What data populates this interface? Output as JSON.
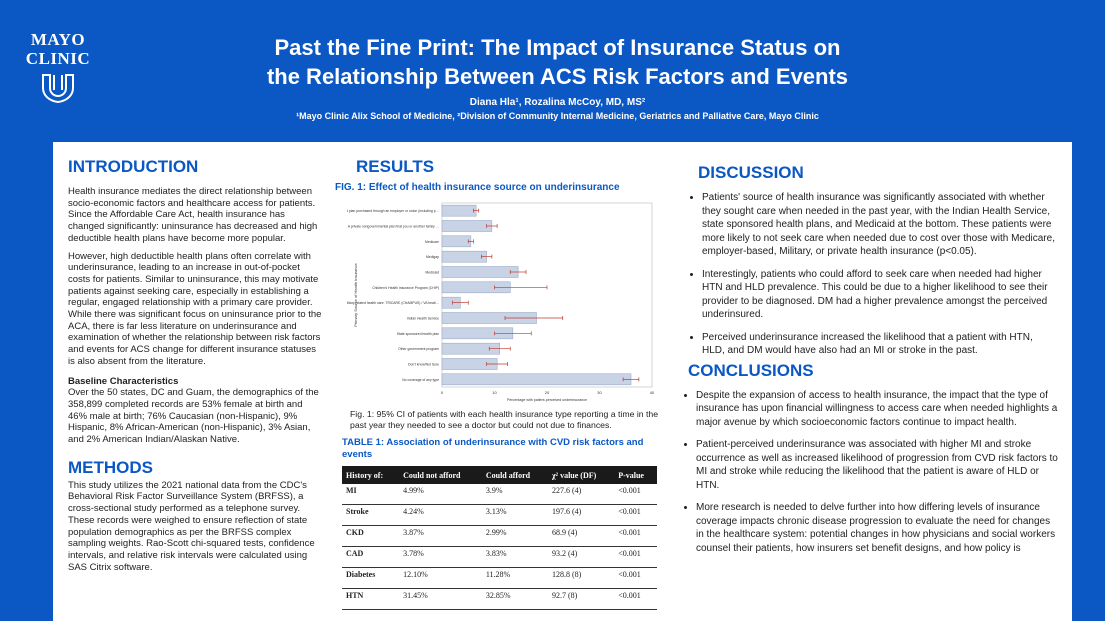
{
  "header": {
    "logo_line1": "MAYO",
    "logo_line2": "CLINIC",
    "title_line1": "Past the Fine Print: The Impact of Insurance Status on",
    "title_line2": "the Relationship Between ACS Risk Factors and Events",
    "authors": "Diana Hla¹, Rozalina McCoy, MD, MS²",
    "affiliations": "¹Mayo Clinic Alix School of Medicine, ²Division of Community Internal Medicine, Geriatrics and Palliative Care, Mayo Clinic"
  },
  "intro": {
    "heading": "INTRODUCTION",
    "p1": "Health insurance mediates the direct relationship between socio-economic factors and healthcare access for patients. Since the Affordable Care Act, health insurance has changed significantly: uninsurance has decreased and high deductible health plans have become more popular.",
    "p2": "However, high deductible health plans often correlate with underinsurance, leading to an increase in out-of-pocket costs for patients. Similar to uninsurance, this may motivate patients against seeking care, especially in establishing a regular, engaged relationship with a primary care provider. While there was significant focus on uninsurance prior to the ACA, there is far less literature on underinsurance and examination of whether the relationship between risk factors and events for ACS change for different insurance statuses is also absent from the literature.",
    "baseline_heading": "Baseline Characteristics",
    "baseline": "Over the 50 states, DC and Guam, the demographics of the 358,899 completed records are 53% female at birth and 46% male at birth; 76% Caucasian (non-Hispanic), 9% Hispanic, 8% African-American (non-Hispanic), 3% Asian, and 2% American Indian/Alaskan Native."
  },
  "methods": {
    "heading": "METHODS",
    "p1": "This study utilizes the 2021 national data from the CDC's Behavioral Risk Factor Surveillance System (BRFSS), a cross-sectional study performed as a telephone survey. These records were weighed to ensure reflection of state population demographics as per the BRFSS complex sampling weights. Rao-Scott chi-squared tests, confidence intervals, and relative risk intervals were calculated using SAS Citrix software."
  },
  "results": {
    "heading": "RESULTS",
    "fig_title": "FIG. 1: Effect of health insurance source on underinsurance",
    "fig_caption": "Fig. 1: 95% CI of patients with each health insurance type reporting a time in the past year they needed to see a doctor but could not due to finances.",
    "table_title": "TABLE 1: Association of underinsurance with CVD risk factors and events",
    "table_headers": [
      "History of:",
      "Could not afford",
      "Could afford",
      "χ² value (DF)",
      "P-value"
    ],
    "table_rows": [
      [
        "MI",
        "4.99%",
        "3.9%",
        "227.6 (4)",
        "<0.001"
      ],
      [
        "Stroke",
        "4.24%",
        "3.13%",
        "197.6 (4)",
        "<0.001"
      ],
      [
        "CKD",
        "3.87%",
        "2.99%",
        "68.9 (4)",
        "<0.001"
      ],
      [
        "CAD",
        "3.78%",
        "3.83%",
        "93.2 (4)",
        "<0.001"
      ],
      [
        "Diabetes",
        "12.10%",
        "11.28%",
        "128.8 (8)",
        "<0.001"
      ],
      [
        "HTN",
        "31.45%",
        "32.85%",
        "92.7 (8)",
        "<0.001"
      ]
    ]
  },
  "chart_data": {
    "type": "bar",
    "orientation": "horizontal",
    "title": "",
    "xlabel": "Percentage with patient-perceived underinsurance",
    "ylabel": "Primary Source of Health Insurance",
    "xlim": [
      0,
      40
    ],
    "xticks": [
      0,
      10,
      20,
      30,
      40
    ],
    "categories": [
      "A plan purchased through an employer or union (including plans purchased through another person's employer)",
      "A private nongovernmental plan that you or another family member buys on your own",
      "Medicare",
      "Medigap",
      "Medicaid",
      "Children's Health Insurance Program (CHIP)",
      "Military related health care: TRICARE (CHAMPUS) / VA health care / CHAMP- VA",
      "Indian Health Service",
      "State sponsored health plan",
      "Other government program",
      "Don't know/Not Sure",
      "No coverage of any type"
    ],
    "values": [
      6.5,
      9.5,
      5.5,
      8.5,
      14.5,
      13.0,
      3.5,
      18.0,
      13.5,
      11.0,
      10.5,
      36.0
    ],
    "ci_low": [
      6.0,
      8.5,
      5.0,
      7.5,
      13.0,
      10.0,
      2.0,
      12.0,
      10.0,
      9.0,
      8.5,
      34.5
    ],
    "ci_high": [
      7.0,
      10.5,
      6.0,
      9.5,
      16.0,
      20.0,
      5.0,
      23.0,
      17.0,
      13.0,
      12.5,
      37.5
    ],
    "bar_color": "#c9d3e6"
  },
  "discussion": {
    "heading": "DISCUSSION",
    "items": [
      "Patients' source of health insurance was significantly associated with whether they sought care when needed in the past year, with the Indian Health Service, state sponsored health plans, and Medicaid at the bottom. These patients were more likely to not seek care when needed due to cost over those with Medicare, employer-based, Military, or private health insurance (p<0.05).",
      "Interestingly, patients who could afford to seek care when needed had higher HTN and HLD prevalence. This could be due to a higher likelihood to see their provider to be diagnosed. DM had a higher prevalence amongst the perceived underinsured.",
      "Perceived underinsurance increased the likelihood that a patient with HTN, HLD, and DM would have also had an MI or stroke in the past."
    ]
  },
  "conclusions": {
    "heading": "CONCLUSIONS",
    "items": [
      "Despite the expansion of access to health insurance, the impact that the type of insurance has upon financial willingness to access care when needed highlights a major avenue by which socioeconomic factors continue to impact health.",
      "Patient-perceived underinsurance was associated with higher MI and stroke occurrence as well as increased likelihood of progression from CVD risk factors to MI and stroke while reducing the likelihood that the patient is aware of HLD or HTN.",
      "More research is needed to delve further into how differing levels of insurance coverage impacts chronic disease progression to evaluate the need for changes in the healthcare system: potential changes in how physicians and social workers counsel their patients, how insurers set benefit designs, and how policy is"
    ]
  },
  "colors": {
    "brand_blue": "#0b57c4",
    "bar": "#c9d3e6",
    "error_bar": "#c0392b"
  }
}
